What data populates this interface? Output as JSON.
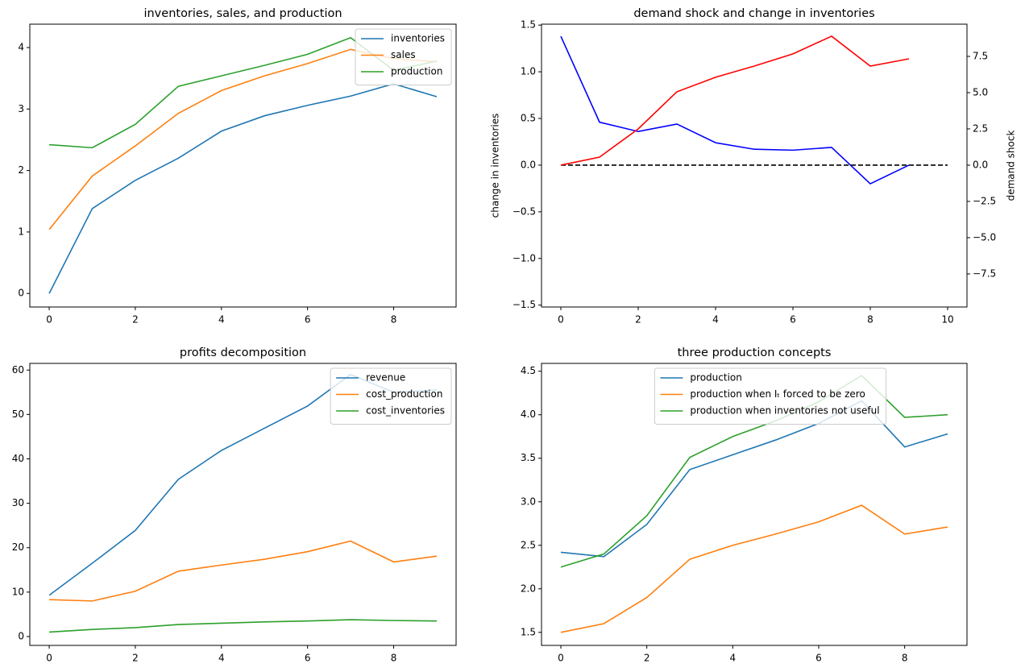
{
  "chart_data": [
    {
      "type": "line",
      "title": "inventories, sales, and production",
      "x": [
        0,
        1,
        2,
        3,
        4,
        5,
        6,
        7,
        8,
        9
      ],
      "series": [
        {
          "name": "inventories",
          "color": "#1f77b4",
          "values": [
            0,
            1.38,
            1.84,
            2.2,
            2.64,
            2.89,
            3.06,
            3.21,
            3.41,
            3.2
          ]
        },
        {
          "name": "sales",
          "color": "#ff7f0e",
          "values": [
            1.04,
            1.91,
            2.4,
            2.93,
            3.3,
            3.54,
            3.74,
            3.97,
            3.82,
            3.77
          ]
        },
        {
          "name": "production",
          "color": "#2ca02c",
          "values": [
            2.42,
            2.37,
            2.75,
            3.37,
            3.54,
            3.71,
            3.89,
            4.16,
            3.63,
            3.78
          ]
        }
      ],
      "xlim": [
        -0.45,
        9.45
      ],
      "xticks": [
        0,
        2,
        4,
        6,
        8
      ],
      "ylim": [
        -0.22,
        4.38
      ],
      "yticks": [
        0,
        1,
        2,
        3,
        4
      ],
      "legend": "upper right"
    },
    {
      "type": "line",
      "title": "demand shock and change in inventories",
      "ylabel": "change in inventories",
      "y2label": "demand shock",
      "x": [
        0,
        1,
        2,
        3,
        4,
        5,
        6,
        7,
        8,
        9
      ],
      "series": [
        {
          "color": "blue",
          "values": [
            1.38,
            0.46,
            0.36,
            0.44,
            0.24,
            0.17,
            0.16,
            0.19,
            -0.2,
            0.0
          ]
        },
        {
          "color": "black",
          "linestyle": "dashed",
          "x": [
            0,
            10
          ],
          "values": [
            0,
            0
          ]
        },
        {
          "color": "red",
          "axis": "y2",
          "values": [
            0,
            0.55,
            2.5,
            5.06,
            6.06,
            6.83,
            7.67,
            8.89,
            6.83,
            7.33
          ]
        }
      ],
      "xlim": [
        -0.5,
        10.5
      ],
      "xticks": [
        0,
        2,
        4,
        6,
        8,
        10
      ],
      "ylim": [
        -1.52,
        1.51
      ],
      "yticks": [
        {
          "value": -1.5,
          "label": "−1.5"
        },
        {
          "value": -1.0,
          "label": "−1.0"
        },
        {
          "value": -0.5,
          "label": "−0.5"
        },
        {
          "value": 0,
          "label": "0.0"
        },
        0.5,
        {
          "value": 1.0,
          "label": "1.0"
        },
        1.5
      ],
      "y2lim": [
        -9.78,
        9.72
      ],
      "y2ticks": [
        {
          "value": -7.5,
          "label": "−7.5"
        },
        {
          "value": -5.0,
          "label": "−5.0"
        },
        {
          "value": -2.5,
          "label": "−2.5"
        },
        {
          "value": 0,
          "label": "0.0"
        },
        2.5,
        {
          "value": 5.0,
          "label": "5.0"
        },
        7.5
      ]
    },
    {
      "type": "line",
      "title": "profits decomposition",
      "x": [
        0,
        1,
        2,
        3,
        4,
        5,
        6,
        7,
        8,
        9
      ],
      "series": [
        {
          "name": "revenue",
          "color": "#1f77b4",
          "values": [
            9.3,
            16.5,
            23.9,
            35.4,
            41.9,
            46.9,
            51.9,
            59,
            55,
            55.5
          ]
        },
        {
          "name": "cost_production",
          "color": "#ff7f0e",
          "values": [
            8.3,
            8.0,
            10.2,
            14.7,
            16.1,
            17.4,
            19.1,
            21.5,
            16.8,
            18.1
          ]
        },
        {
          "name": "cost_inventories",
          "color": "#2ca02c",
          "values": [
            1.0,
            1.6,
            2.0,
            2.7,
            3.0,
            3.3,
            3.5,
            3.8,
            3.6,
            3.5
          ]
        }
      ],
      "xlim": [
        -0.45,
        9.45
      ],
      "xticks": [
        0,
        2,
        4,
        6,
        8
      ],
      "ylim": [
        -2,
        61.5
      ],
      "yticks": [
        0,
        10,
        20,
        30,
        40,
        50,
        60
      ],
      "legend": "upper right"
    },
    {
      "type": "line",
      "title": "three production concepts",
      "x": [
        0,
        1,
        2,
        3,
        4,
        5,
        6,
        7,
        8,
        9
      ],
      "series": [
        {
          "name": "production",
          "color": "#1f77b4",
          "values": [
            2.42,
            2.37,
            2.74,
            3.37,
            3.54,
            3.71,
            3.9,
            4.16,
            3.63,
            3.78
          ]
        },
        {
          "name": "production when Iₜ forced to be zero",
          "color": "#ff7f0e",
          "values": [
            1.5,
            1.6,
            1.9,
            2.34,
            2.5,
            2.63,
            2.77,
            2.96,
            2.63,
            2.71
          ]
        },
        {
          "name": "production when inventories not useful",
          "color": "#2ca02c",
          "values": [
            2.25,
            2.4,
            2.84,
            3.51,
            3.75,
            3.93,
            4.15,
            4.45,
            3.97,
            4.0
          ]
        }
      ],
      "xlim": [
        -0.45,
        9.45
      ],
      "xticks": [
        0,
        2,
        4,
        6,
        8
      ],
      "ylim": [
        1.35,
        4.59
      ],
      "yticks": [
        1.5,
        {
          "value": 2.0,
          "label": "2.0"
        },
        2.5,
        {
          "value": 3.0,
          "label": "3.0"
        },
        3.5,
        {
          "value": 4.0,
          "label": "4.0"
        },
        4.5
      ],
      "legend": "upper center"
    }
  ]
}
